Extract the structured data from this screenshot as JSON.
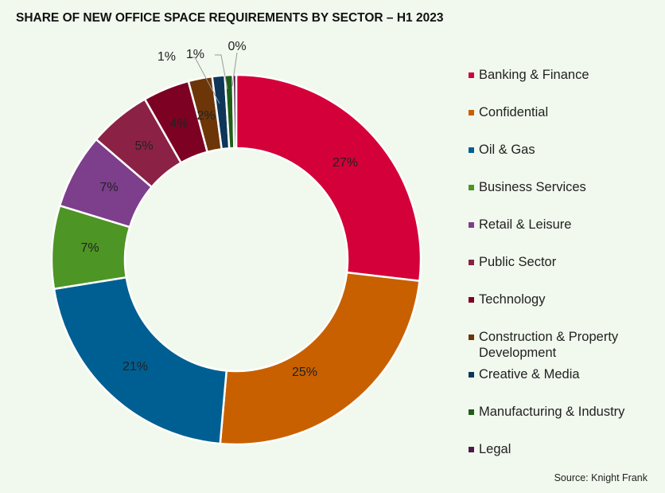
{
  "chart_data": {
    "type": "pie",
    "title": "SHARE OF NEW OFFICE SPACE REQUIREMENTS BY SECTOR – H1 2023",
    "labels": [
      "Banking & Finance",
      "Confidential",
      "Oil & Gas",
      "Business Services",
      "Retail & Leisure",
      "Public Sector",
      "Technology",
      "Construction & Property Development",
      "Creative & Media",
      "Manufacturing & Industry",
      "Legal"
    ],
    "values": [
      27,
      25,
      21,
      7,
      7,
      5,
      4,
      2,
      1,
      1,
      0
    ],
    "data_labels": [
      "27%",
      "25%",
      "21%",
      "7%",
      "7%",
      "5%",
      "4%",
      "2%",
      "1%",
      "1%",
      "0%"
    ],
    "colors": [
      "#d40039",
      "#c86000",
      "#005f92",
      "#4d9524",
      "#7d3e8c",
      "#8b2245",
      "#7c0123",
      "#6d3608",
      "#0d3658",
      "#1f5e17",
      "#4e1a4c"
    ],
    "donut": true,
    "legend_position": "right",
    "source": "Source: Knight Frank"
  }
}
